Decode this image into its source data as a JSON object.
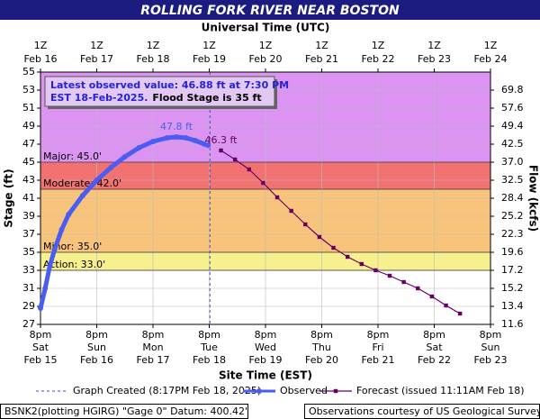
{
  "chart_data": {
    "type": "line",
    "title": "ROLLING FORK RIVER NEAR BOSTON",
    "top_axis_label": "Universal Time (UTC)",
    "xlabel": "Site Time (EST)",
    "ylabel": "Stage (ft)",
    "y2label": "Flow (kcfs)",
    "xlim": [
      "2025-02-15T20:00-05:00",
      "2025-02-23T20:00-05:00"
    ],
    "xticks": [
      {
        "value": "2025-02-15T20:00-05:00",
        "label": [
          "8pm",
          "Sat",
          "Feb 15"
        ]
      },
      {
        "value": "2025-02-16T20:00-05:00",
        "label": [
          "8pm",
          "Sun",
          "Feb 16"
        ]
      },
      {
        "value": "2025-02-17T20:00-05:00",
        "label": [
          "8pm",
          "Mon",
          "Feb 17"
        ]
      },
      {
        "value": "2025-02-18T20:00-05:00",
        "label": [
          "8pm",
          "Tue",
          "Feb 18"
        ]
      },
      {
        "value": "2025-02-19T20:00-05:00",
        "label": [
          "8pm",
          "Wed",
          "Feb 19"
        ]
      },
      {
        "value": "2025-02-20T20:00-05:00",
        "label": [
          "8pm",
          "Thu",
          "Feb 20"
        ]
      },
      {
        "value": "2025-02-21T20:00-05:00",
        "label": [
          "8pm",
          "Fri",
          "Feb 21"
        ]
      },
      {
        "value": "2025-02-22T20:00-05:00",
        "label": [
          "8pm",
          "Sat",
          "Feb 22"
        ]
      },
      {
        "value": "2025-02-23T20:00-05:00",
        "label": [
          "8pm",
          "Sun",
          "Feb 23"
        ]
      }
    ],
    "x2ticks": [
      {
        "value": "2025-02-16T01:00Z",
        "label": [
          "1Z",
          "Feb 16"
        ]
      },
      {
        "value": "2025-02-17T01:00Z",
        "label": [
          "1Z",
          "Feb 17"
        ]
      },
      {
        "value": "2025-02-18T01:00Z",
        "label": [
          "1Z",
          "Feb 18"
        ]
      },
      {
        "value": "2025-02-19T01:00Z",
        "label": [
          "1Z",
          "Feb 19"
        ]
      },
      {
        "value": "2025-02-20T01:00Z",
        "label": [
          "1Z",
          "Feb 20"
        ]
      },
      {
        "value": "2025-02-21T01:00Z",
        "label": [
          "1Z",
          "Feb 21"
        ]
      },
      {
        "value": "2025-02-22T01:00Z",
        "label": [
          "1Z",
          "Feb 22"
        ]
      },
      {
        "value": "2025-02-23T01:00Z",
        "label": [
          "1Z",
          "Feb 23"
        ]
      },
      {
        "value": "2025-02-24T01:00Z",
        "label": [
          "1Z",
          "Feb 24"
        ]
      }
    ],
    "ylim": [
      27,
      55
    ],
    "yticks": [
      27,
      29,
      31,
      33,
      35,
      37,
      39,
      41,
      43,
      45,
      47,
      49,
      51,
      53,
      55
    ],
    "y2ticks": [
      11.6,
      13.4,
      15.2,
      17.2,
      19.6,
      22.3,
      25.2,
      28.4,
      32.5,
      {
        "value": 37,
        "label": "37.0"
      },
      42.5,
      49.4,
      57.6,
      69.8
    ],
    "grid": true,
    "thresholds": [
      {
        "label": "Major: 45.0'",
        "value": 45,
        "color": "#dc94f2"
      },
      {
        "label": "Moderate: 42.0'",
        "value": 42,
        "color": "#f27272"
      },
      {
        "label": "Minor: 35.0'",
        "value": 35,
        "color": "#f8c47c"
      },
      {
        "label": "Action: 33.0'",
        "value": 33,
        "color": "#f6f08e"
      }
    ],
    "created": {
      "x": "2025-02-18T20:17-05:00",
      "label": "Graph Created (8:17PM Feb 18, 2025)"
    },
    "latest_observed": [
      "Latest observed value: 46.88 ft at 7:30 PM",
      "EST 18-Feb-2025."
    ],
    "flood_stage_note": "Flood Stage is 35 ft",
    "series": [
      {
        "name": "Observed",
        "color": "#4a5cf2",
        "x": [
          "2025-02-15T20:00-05:00",
          "2025-02-15T22:00-05:00",
          "2025-02-16T00:00-05:00",
          "2025-02-16T02:00-05:00",
          "2025-02-16T05:00-05:00",
          "2025-02-16T08:00-05:00",
          "2025-02-16T14:00-05:00",
          "2025-02-16T20:00-05:00",
          "2025-02-17T02:00-05:00",
          "2025-02-17T08:00-05:00",
          "2025-02-17T14:00-05:00",
          "2025-02-17T20:00-05:00",
          "2025-02-18T02:00-05:00",
          "2025-02-18T06:00-05:00",
          "2025-02-18T10:00-05:00",
          "2025-02-18T14:00-05:00",
          "2025-02-18T18:00-05:00",
          "2025-02-18T19:30-05:00"
        ],
        "values": [
          28.8,
          31.0,
          33.5,
          35.3,
          37.5,
          39.2,
          41.3,
          43.0,
          44.4,
          45.6,
          46.6,
          47.3,
          47.7,
          47.8,
          47.7,
          47.4,
          47.0,
          46.88
        ]
      },
      {
        "name": "Forecast (issued 11:11AM Feb 18)",
        "color": "#660066",
        "x": [
          "2025-02-19T01:00-05:00",
          "2025-02-19T07:00-05:00",
          "2025-02-19T13:00-05:00",
          "2025-02-19T19:00-05:00",
          "2025-02-20T01:00-05:00",
          "2025-02-20T07:00-05:00",
          "2025-02-20T13:00-05:00",
          "2025-02-20T19:00-05:00",
          "2025-02-21T01:00-05:00",
          "2025-02-21T07:00-05:00",
          "2025-02-21T13:00-05:00",
          "2025-02-21T19:00-05:00",
          "2025-02-22T01:00-05:00",
          "2025-02-22T07:00-05:00",
          "2025-02-22T13:00-05:00",
          "2025-02-22T19:00-05:00",
          "2025-02-23T01:00-05:00",
          "2025-02-23T07:00-05:00"
        ],
        "values": [
          46.3,
          45.3,
          44.2,
          42.7,
          41.1,
          39.6,
          38.1,
          36.7,
          35.5,
          34.5,
          33.7,
          33.0,
          32.4,
          31.7,
          31.0,
          30.1,
          29.1,
          28.2
        ]
      }
    ],
    "annotations": [
      {
        "text": "47.8 ft",
        "series": 0,
        "index": 13
      },
      {
        "text": "46.3 ft",
        "series": 1,
        "index": 0
      }
    ],
    "footer": {
      "left": "BSNK2(plotting HGIRG) \"Gage 0\" Datum: 400.42'",
      "right": "Observations courtesy of US Geological Survey"
    }
  }
}
